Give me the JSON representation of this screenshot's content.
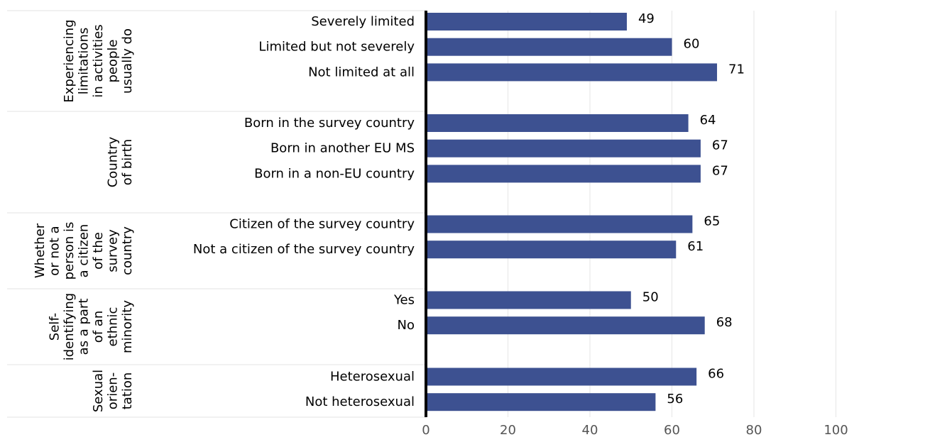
{
  "chart_data": {
    "type": "bar",
    "orientation": "horizontal",
    "title": "",
    "xlabel": "",
    "ylabel": "",
    "xlim": [
      0,
      100
    ],
    "x_ticks": [
      "0",
      "20",
      "40",
      "60",
      "80",
      "100"
    ],
    "grid": true,
    "bar_color": "#3d5191",
    "groups": [
      {
        "label_lines": [
          "Experiencing",
          "limitations",
          "in activities",
          "people",
          "usually do"
        ],
        "categories": [
          "Severely limited",
          "Limited but not severely",
          "Not limited at all"
        ],
        "values": [
          49,
          60,
          71
        ]
      },
      {
        "label_lines": [
          "Country",
          "of birth"
        ],
        "categories": [
          "Born in the survey country",
          "Born in another EU MS",
          "Born in a non-EU country"
        ],
        "values": [
          64,
          67,
          67
        ]
      },
      {
        "label_lines": [
          "Whether",
          "or not a",
          "person is",
          "a citizen",
          "of the",
          "survey",
          "country"
        ],
        "categories": [
          "Citizen of the survey country",
          "Not a citizen of the survey country"
        ],
        "values": [
          65,
          61
        ]
      },
      {
        "label_lines": [
          "Self-",
          "identifying",
          "as a part",
          "of an",
          "ethnic",
          "minority"
        ],
        "categories": [
          "Yes",
          "No"
        ],
        "values": [
          50,
          68
        ]
      },
      {
        "label_lines": [
          "Sexual",
          "orien-",
          "tation"
        ],
        "categories": [
          "Heterosexual",
          "Not heterosexual"
        ],
        "values": [
          66,
          56
        ]
      }
    ]
  }
}
